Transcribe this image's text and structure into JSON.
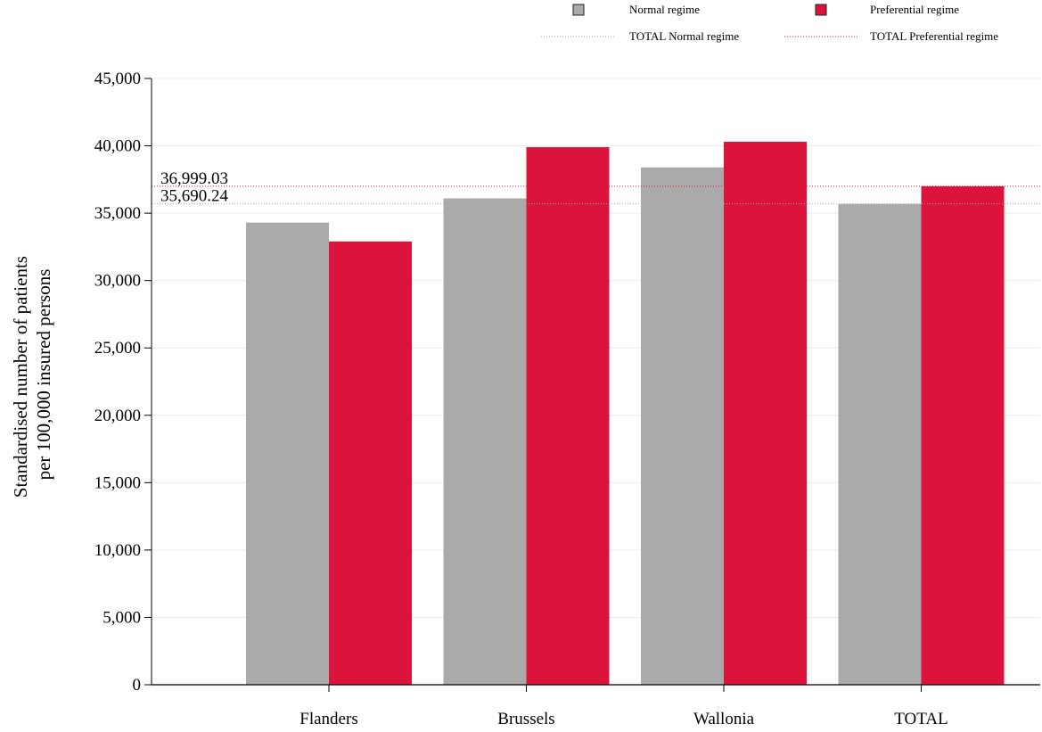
{
  "chart_data": {
    "type": "bar",
    "categories": [
      "Flanders",
      "Brussels",
      "Wallonia",
      "TOTAL"
    ],
    "series": [
      {
        "name": "Normal regime",
        "color": "#aaaaaa",
        "values": [
          34300,
          36100,
          38400,
          35690.24
        ]
      },
      {
        "name": "Preferential regime",
        "color": "#dc143c",
        "values": [
          32900,
          39900,
          40300,
          36999.03
        ]
      }
    ],
    "reference_lines": [
      {
        "name": "TOTAL Normal regime",
        "value": 35690.24,
        "label": "35,690.24",
        "color": "#aaaaaa",
        "style": "dotted"
      },
      {
        "name": "TOTAL Preferential regime",
        "value": 36999.03,
        "label": "36,999.03",
        "color": "#dc143c",
        "style": "dotted"
      }
    ],
    "ylabel_lines": [
      "Standardised number of patients",
      "per 100,000 insured persons"
    ],
    "yticks": [
      "0",
      "5,000",
      "10,000",
      "15,000",
      "20,000",
      "25,000",
      "30,000",
      "35,000",
      "40,000",
      "45,000"
    ],
    "ytick_values": [
      0,
      5000,
      10000,
      15000,
      20000,
      25000,
      30000,
      35000,
      40000,
      45000
    ],
    "ylim": [
      0,
      45000
    ],
    "grid": true,
    "legend_position": "top-right"
  }
}
